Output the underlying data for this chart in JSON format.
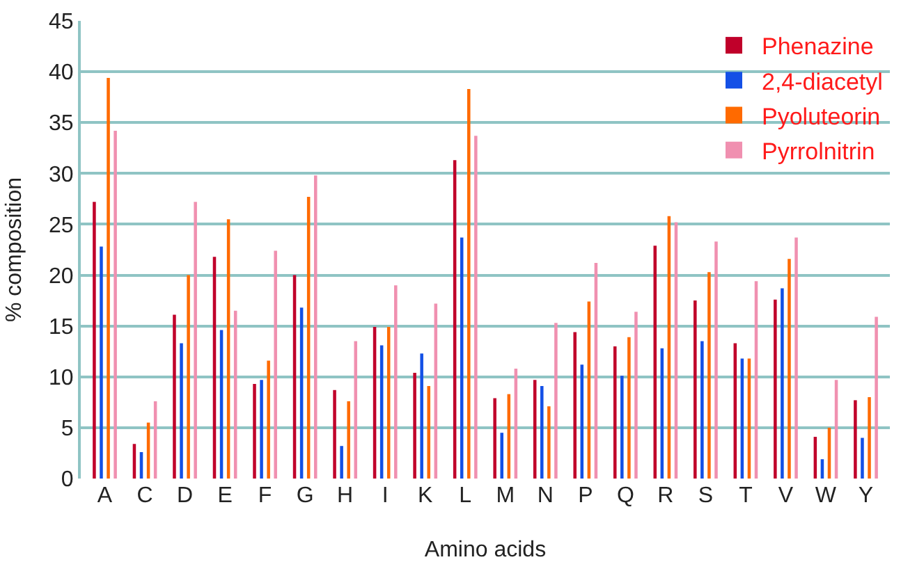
{
  "chart_data": {
    "type": "bar",
    "xlabel": "Amino acids",
    "ylabel": "% composition",
    "categories": [
      "A",
      "C",
      "D",
      "E",
      "F",
      "G",
      "H",
      "I",
      "K",
      "L",
      "M",
      "N",
      "P",
      "Q",
      "R",
      "S",
      "T",
      "V",
      "W",
      "Y"
    ],
    "series": [
      {
        "name": "Phenazine",
        "color": "#c0002a",
        "values": [
          27.2,
          3.4,
          16.1,
          21.8,
          9.3,
          20,
          8.7,
          14.9,
          10.4,
          31.3,
          7.9,
          9.7,
          14.4,
          13,
          22.9,
          17.5,
          13.3,
          17.6,
          4.1,
          7.7
        ]
      },
      {
        "name": "2,4-diacetyl",
        "color": "#1450e6",
        "values": [
          22.8,
          2.6,
          13.3,
          14.6,
          9.7,
          16.8,
          3.2,
          13.1,
          12.3,
          23.7,
          4.5,
          9.1,
          11.2,
          10.1,
          12.8,
          13.5,
          11.8,
          18.7,
          1.9,
          4.0
        ]
      },
      {
        "name": "Pyoluteorin",
        "color": "#ff6a00",
        "values": [
          39.4,
          5.5,
          20,
          25.5,
          11.6,
          27.7,
          7.6,
          14.9,
          9.1,
          38.3,
          8.3,
          7.1,
          17.4,
          13.9,
          25.8,
          20.3,
          11.8,
          21.6,
          5.0,
          8.0
        ]
      },
      {
        "name": "Pyrrolnitrin",
        "color": "#f090b0",
        "values": [
          34.2,
          7.6,
          27.2,
          16.5,
          22.4,
          29.8,
          13.5,
          19,
          17.2,
          33.7,
          10.8,
          15.3,
          21.2,
          16.4,
          25.2,
          23.3,
          19.4,
          23.7,
          9.7,
          15.9
        ]
      }
    ],
    "ylim": [
      0,
      45
    ],
    "yticks": [
      0,
      5,
      10,
      15,
      20,
      25,
      30,
      35,
      40,
      45
    ],
    "grid": "y",
    "legend": "top right"
  }
}
